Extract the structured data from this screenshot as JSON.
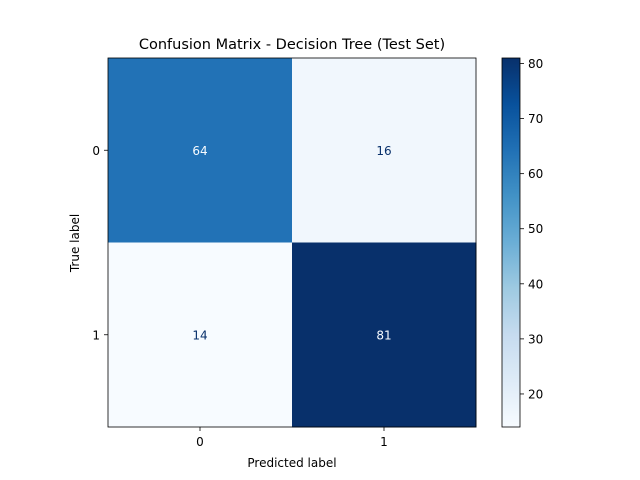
{
  "chart_data": {
    "type": "heatmap",
    "title": "Confusion Matrix - Decision Tree (Test Set)",
    "xlabel": "Predicted label",
    "ylabel": "True label",
    "x_categories": [
      "0",
      "1"
    ],
    "y_categories": [
      "0",
      "1"
    ],
    "values": [
      [
        64,
        16
      ],
      [
        14,
        81
      ]
    ],
    "colormap": "Blues",
    "colorbar": {
      "min": 14,
      "max": 81,
      "ticks": [
        20,
        30,
        40,
        50,
        60,
        70,
        80
      ]
    },
    "grid": false
  }
}
